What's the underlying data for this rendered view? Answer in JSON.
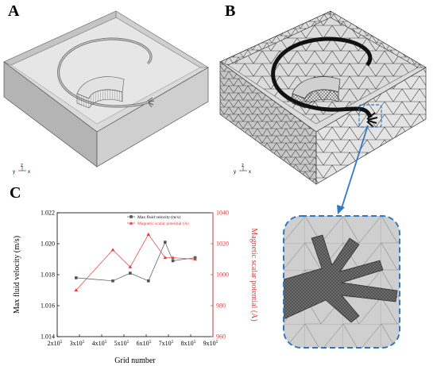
{
  "panels": {
    "a": "A",
    "b": "B",
    "c": "C"
  },
  "triad": {
    "y": "y",
    "z": "z",
    "x": "x"
  },
  "colors": {
    "series1": "#555555",
    "series2": "#e8393b",
    "highlight": "#2f79c4"
  },
  "chart_data": {
    "type": "line",
    "xlabel": "Grid number",
    "ylabel_left": "Max fluid velocity (m/s)",
    "ylabel_right": "Magnetic scalar potential (A)",
    "xlim": [
      200000,
      900000
    ],
    "ylim_left": [
      1.014,
      1.022
    ],
    "ylim_right": [
      960,
      1040
    ],
    "x_ticks": [
      {
        "v": 200000,
        "m": "2x10",
        "e": "5"
      },
      {
        "v": 300000,
        "m": "3x10",
        "e": "5"
      },
      {
        "v": 400000,
        "m": "4x10",
        "e": "5"
      },
      {
        "v": 500000,
        "m": "5x10",
        "e": "5"
      },
      {
        "v": 600000,
        "m": "6x10",
        "e": "5"
      },
      {
        "v": 700000,
        "m": "7x10",
        "e": "5"
      },
      {
        "v": 800000,
        "m": "8x10",
        "e": "5"
      },
      {
        "v": 900000,
        "m": "9x10",
        "e": "5"
      }
    ],
    "y_left_ticks": [
      "1.014",
      "1.016",
      "1.018",
      "1.020",
      "1.022"
    ],
    "y_right_ticks": [
      "960",
      "980",
      "1000",
      "1020",
      "1040"
    ],
    "legend_position": "top-right",
    "series": [
      {
        "name": "Max fluid velocity (m/s)",
        "axis": "left",
        "marker": "square",
        "x": [
          285000,
          450000,
          528000,
          610000,
          685000,
          720000,
          820000
        ],
        "y": [
          1.0178,
          1.0176,
          1.0181,
          1.0176,
          1.0201,
          1.0189,
          1.0191
        ]
      },
      {
        "name": "Magnetic scalar potential (A)",
        "axis": "right",
        "marker": "triangle",
        "x": [
          285000,
          450000,
          528000,
          610000,
          685000,
          720000,
          820000
        ],
        "y": [
          990,
          1016,
          1005,
          1026,
          1011,
          1011,
          1010
        ]
      }
    ]
  }
}
